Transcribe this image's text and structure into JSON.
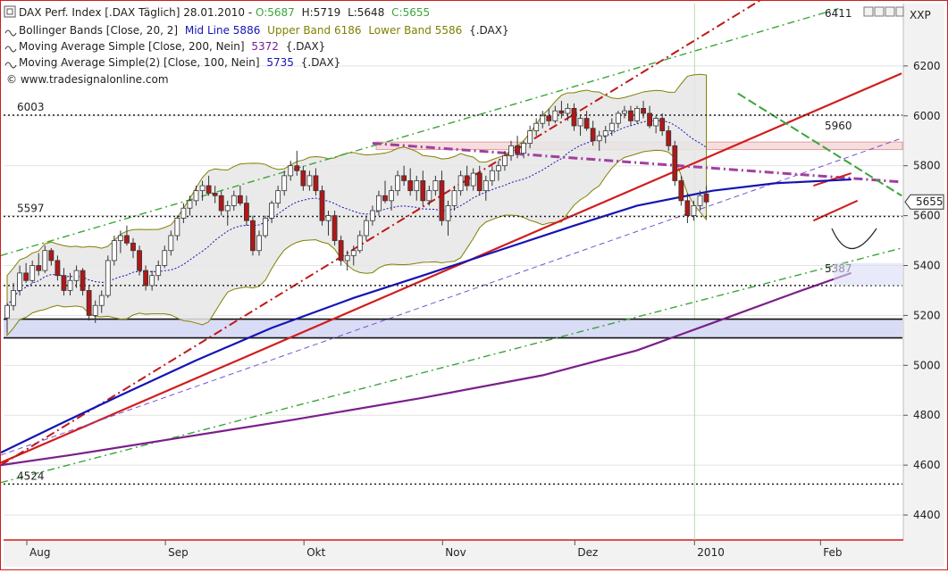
{
  "chart_data": {
    "type": "candlestick",
    "title": "DAX Perf. Index [.DAX  Täglich] 28.01.2010",
    "quote": {
      "open_label": "O:5687",
      "high_label": "H:5719",
      "low_label": "L:5648",
      "close_label": "C:5655"
    },
    "indicators": [
      {
        "prefix": "Bollinger Bands [Close, 20, 2]",
        "mid": "Mid Line 5886",
        "upper": "Upper Band 6186",
        "lower": "Lower Band 5586",
        "suffix": "{.DAX}"
      },
      {
        "text": "Moving Average Simple [Close, 200, Nein]",
        "value": "5372",
        "suffix": "{.DAX}"
      },
      {
        "text": "Moving Average Simple(2) [Close, 100, Nein]",
        "value": "5735",
        "suffix": "{.DAX}"
      }
    ],
    "watermark": "© www.tradesignalonline.com",
    "symbol_label": "XXP",
    "last_price_label": "5655",
    "ylim": [
      4300,
      6450
    ],
    "yticks": [
      4400,
      4600,
      4800,
      5000,
      5200,
      5400,
      5600,
      5800,
      6000,
      6200
    ],
    "x_months": [
      {
        "label": "Aug",
        "idx": 0
      },
      {
        "label": "Sep",
        "idx": 22
      },
      {
        "label": "Okt",
        "idx": 44
      },
      {
        "label": "Nov",
        "idx": 66
      },
      {
        "label": "Dez",
        "idx": 87
      },
      {
        "label": "2010",
        "idx": 106
      },
      {
        "label": "Feb",
        "idx": 126
      }
    ],
    "horizontal_levels": [
      {
        "value": 6003,
        "label": "6003"
      },
      {
        "value": 5597,
        "label": "5597"
      },
      {
        "value": 5320,
        "label": ""
      },
      {
        "value": 4524,
        "label": "4524"
      }
    ],
    "price_annotations": [
      {
        "value": 6411,
        "label": "6411",
        "color": "#3aa53a"
      },
      {
        "value": 5960,
        "label": "5960",
        "color": "#d21c1c"
      },
      {
        "value": 5387,
        "label": "5387",
        "color": "#3aa53a"
      }
    ],
    "support_zone": [
      5110,
      5185
    ],
    "resistance_zone": [
      5865,
      5895
    ],
    "colors": {
      "up": "#ffffff",
      "down": "#b01818",
      "bollinger": "#808000",
      "sma200": "#7a1f8a",
      "sma100": "#1414b4"
    },
    "candles": [
      [
        5190,
        5250,
        5130,
        5240
      ],
      [
        5240,
        5330,
        5220,
        5300
      ],
      [
        5300,
        5400,
        5280,
        5370
      ],
      [
        5370,
        5410,
        5330,
        5340
      ],
      [
        5340,
        5420,
        5330,
        5400
      ],
      [
        5400,
        5450,
        5360,
        5380
      ],
      [
        5380,
        5480,
        5370,
        5460
      ],
      [
        5460,
        5470,
        5400,
        5420
      ],
      [
        5420,
        5440,
        5340,
        5360
      ],
      [
        5360,
        5390,
        5280,
        5300
      ],
      [
        5300,
        5370,
        5280,
        5340
      ],
      [
        5340,
        5400,
        5310,
        5380
      ],
      [
        5380,
        5390,
        5280,
        5300
      ],
      [
        5300,
        5320,
        5180,
        5200
      ],
      [
        5200,
        5260,
        5170,
        5240
      ],
      [
        5240,
        5300,
        5210,
        5280
      ],
      [
        5280,
        5440,
        5270,
        5420
      ],
      [
        5420,
        5520,
        5400,
        5500
      ],
      [
        5500,
        5540,
        5450,
        5520
      ],
      [
        5520,
        5560,
        5480,
        5490
      ],
      [
        5490,
        5510,
        5430,
        5460
      ],
      [
        5460,
        5480,
        5360,
        5380
      ],
      [
        5380,
        5400,
        5300,
        5320
      ],
      [
        5320,
        5380,
        5300,
        5360
      ],
      [
        5360,
        5420,
        5340,
        5400
      ],
      [
        5400,
        5480,
        5390,
        5460
      ],
      [
        5460,
        5540,
        5440,
        5520
      ],
      [
        5520,
        5600,
        5500,
        5590
      ],
      [
        5590,
        5650,
        5570,
        5630
      ],
      [
        5630,
        5680,
        5600,
        5660
      ],
      [
        5660,
        5720,
        5640,
        5700
      ],
      [
        5700,
        5740,
        5660,
        5720
      ],
      [
        5720,
        5760,
        5680,
        5690
      ],
      [
        5690,
        5720,
        5650,
        5680
      ],
      [
        5680,
        5700,
        5600,
        5620
      ],
      [
        5620,
        5660,
        5560,
        5640
      ],
      [
        5640,
        5700,
        5620,
        5680
      ],
      [
        5680,
        5720,
        5640,
        5650
      ],
      [
        5650,
        5680,
        5560,
        5580
      ],
      [
        5580,
        5600,
        5440,
        5460
      ],
      [
        5460,
        5540,
        5440,
        5520
      ],
      [
        5520,
        5600,
        5510,
        5590
      ],
      [
        5590,
        5660,
        5570,
        5650
      ],
      [
        5650,
        5720,
        5630,
        5700
      ],
      [
        5700,
        5780,
        5680,
        5760
      ],
      [
        5760,
        5820,
        5740,
        5800
      ],
      [
        5800,
        5860,
        5760,
        5780
      ],
      [
        5780,
        5800,
        5700,
        5720
      ],
      [
        5720,
        5780,
        5700,
        5760
      ],
      [
        5760,
        5790,
        5680,
        5700
      ],
      [
        5700,
        5720,
        5560,
        5580
      ],
      [
        5580,
        5620,
        5520,
        5600
      ],
      [
        5600,
        5620,
        5480,
        5500
      ],
      [
        5500,
        5520,
        5400,
        5420
      ],
      [
        5420,
        5460,
        5380,
        5440
      ],
      [
        5440,
        5480,
        5400,
        5460
      ],
      [
        5460,
        5540,
        5450,
        5520
      ],
      [
        5520,
        5600,
        5500,
        5580
      ],
      [
        5580,
        5640,
        5560,
        5620
      ],
      [
        5620,
        5700,
        5600,
        5680
      ],
      [
        5680,
        5740,
        5650,
        5660
      ],
      [
        5660,
        5720,
        5620,
        5700
      ],
      [
        5700,
        5780,
        5680,
        5760
      ],
      [
        5760,
        5800,
        5720,
        5740
      ],
      [
        5740,
        5790,
        5680,
        5700
      ],
      [
        5700,
        5760,
        5660,
        5740
      ],
      [
        5740,
        5780,
        5640,
        5660
      ],
      [
        5660,
        5720,
        5640,
        5700
      ],
      [
        5700,
        5760,
        5680,
        5740
      ],
      [
        5740,
        5780,
        5560,
        5580
      ],
      [
        5580,
        5660,
        5520,
        5640
      ],
      [
        5640,
        5720,
        5620,
        5700
      ],
      [
        5700,
        5780,
        5680,
        5760
      ],
      [
        5760,
        5800,
        5700,
        5720
      ],
      [
        5720,
        5790,
        5700,
        5770
      ],
      [
        5770,
        5800,
        5680,
        5700
      ],
      [
        5700,
        5760,
        5660,
        5740
      ],
      [
        5740,
        5800,
        5720,
        5780
      ],
      [
        5780,
        5820,
        5740,
        5800
      ],
      [
        5800,
        5860,
        5780,
        5840
      ],
      [
        5840,
        5900,
        5820,
        5880
      ],
      [
        5880,
        5920,
        5830,
        5850
      ],
      [
        5850,
        5900,
        5830,
        5890
      ],
      [
        5890,
        5960,
        5870,
        5940
      ],
      [
        5940,
        5990,
        5920,
        5970
      ],
      [
        5970,
        6020,
        5950,
        6000
      ],
      [
        6000,
        6030,
        5960,
        5980
      ],
      [
        5980,
        6040,
        5970,
        6020
      ],
      [
        6020,
        6060,
        5990,
        6010
      ],
      [
        6010,
        6050,
        5980,
        6030
      ],
      [
        6030,
        6050,
        5940,
        5960
      ],
      [
        5960,
        6000,
        5920,
        5990
      ],
      [
        5990,
        6020,
        5940,
        5950
      ],
      [
        5950,
        5980,
        5880,
        5900
      ],
      [
        5900,
        5940,
        5860,
        5920
      ],
      [
        5920,
        5960,
        5890,
        5940
      ],
      [
        5940,
        5990,
        5920,
        5970
      ],
      [
        5970,
        6020,
        5950,
        6010
      ],
      [
        6010,
        6040,
        5990,
        6020
      ],
      [
        6020,
        6040,
        5960,
        5980
      ],
      [
        5980,
        6040,
        5970,
        6030
      ],
      [
        6030,
        6060,
        5990,
        6010
      ],
      [
        6010,
        6040,
        5950,
        5960
      ],
      [
        5960,
        6000,
        5930,
        5990
      ],
      [
        5990,
        6010,
        5920,
        5940
      ],
      [
        5940,
        5960,
        5860,
        5880
      ],
      [
        5880,
        5900,
        5720,
        5740
      ],
      [
        5740,
        5760,
        5640,
        5660
      ],
      [
        5660,
        5690,
        5570,
        5600
      ],
      [
        5600,
        5660,
        5580,
        5640
      ],
      [
        5640,
        5700,
        5620,
        5680
      ],
      [
        5687,
        5719,
        5648,
        5655
      ]
    ]
  }
}
